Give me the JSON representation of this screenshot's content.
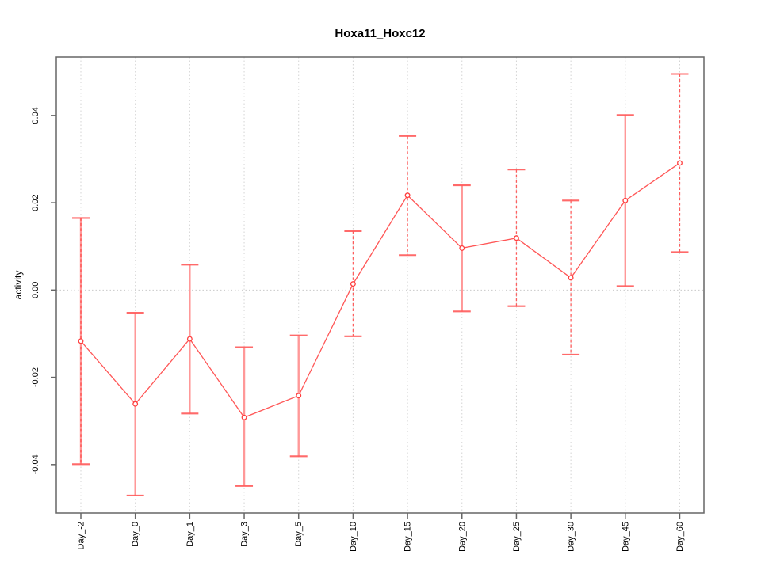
{
  "chart_data": {
    "type": "line",
    "title": "Hoxa11_Hoxc12",
    "xlabel": "",
    "ylabel": "activity",
    "categories": [
      "Day_-2",
      "Day_0",
      "Day_1",
      "Day_3",
      "Day_5",
      "Day_10",
      "Day_15",
      "Day_20",
      "Day_25",
      "Day_30",
      "Day_45",
      "Day_60"
    ],
    "series": [
      {
        "name": "Hoxa11_Hoxc12 activity",
        "values": [
          -0.0117,
          -0.0261,
          -0.0112,
          -0.0292,
          -0.0242,
          0.0014,
          0.0217,
          0.0096,
          0.0119,
          0.0028,
          0.0205,
          0.0291
        ],
        "error_upper": [
          0.0165,
          -0.0052,
          0.0058,
          -0.0131,
          -0.0104,
          0.0135,
          0.0353,
          0.024,
          0.0276,
          0.0205,
          0.0401,
          0.0495
        ],
        "error_lower": [
          -0.0399,
          -0.0471,
          -0.0283,
          -0.0449,
          -0.0381,
          -0.0106,
          0.008,
          -0.0049,
          -0.0037,
          -0.0148,
          0.0009,
          0.0087
        ]
      }
    ],
    "error_bar_styles": [
      "dashed-over-solid",
      "solid",
      "solid",
      "solid",
      "solid",
      "dashed",
      "dashed",
      "solid",
      "dashed",
      "dashed",
      "solid",
      "dashed"
    ],
    "yticks": [
      -0.04,
      -0.02,
      0.0,
      0.02,
      0.04
    ],
    "ytick_labels": [
      "-0.04",
      "-0.02",
      "0.00",
      "0.02",
      "0.04"
    ],
    "ylim": [
      -0.0511,
      0.0534
    ],
    "marker": "open-circle",
    "legend": "none",
    "grid": {
      "vertical": "dotted line at every category",
      "horizontal": "dotted reference line at y = 0 only"
    },
    "colors": {
      "series_line": "#ff4444",
      "marker": "#ff3d3d",
      "error_bar_solid": "#ff9898",
      "error_bar_dashed": "#ff4444",
      "error_bar_cap": "#ff5a5a",
      "grid": "#d4d4d4",
      "zero_line": "#c9c9c9",
      "axis_frame": "#666666",
      "text": "#000000",
      "background": "#ffffff"
    }
  }
}
